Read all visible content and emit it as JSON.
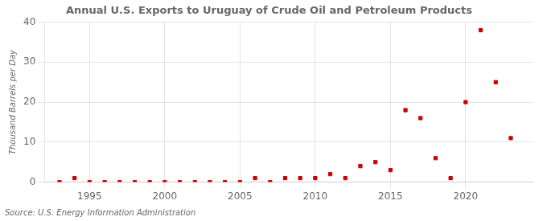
{
  "chart_data": {
    "type": "scatter",
    "title": "Annual U.S. Exports to Uruguay of Crude Oil and Petroleum Products",
    "ylabel": "Thousand Barrels per Day",
    "source": "Source: U.S. Energy Information Administration",
    "x": [
      1993,
      1994,
      1995,
      1996,
      1997,
      1998,
      1999,
      2000,
      2001,
      2002,
      2003,
      2004,
      2005,
      2006,
      2007,
      2008,
      2009,
      2010,
      2011,
      2012,
      2013,
      2014,
      2015,
      2016,
      2017,
      2018,
      2019,
      2020,
      2021,
      2022,
      2023
    ],
    "values": [
      0,
      1,
      0,
      0,
      0,
      0,
      0,
      0,
      0,
      0,
      0,
      0,
      0,
      1,
      0,
      1,
      1,
      1,
      2,
      1,
      4,
      5,
      3,
      18,
      16,
      6,
      1,
      20,
      38,
      25,
      11
    ],
    "color": "#cc0000",
    "marker": "square",
    "xlim": [
      1992,
      2024.5
    ],
    "xticks": [
      1995,
      2000,
      2005,
      2010,
      2015,
      2020
    ],
    "ylim": [
      0,
      40
    ],
    "yticks": [
      0,
      10,
      20,
      30,
      40
    ],
    "grid": true
  }
}
